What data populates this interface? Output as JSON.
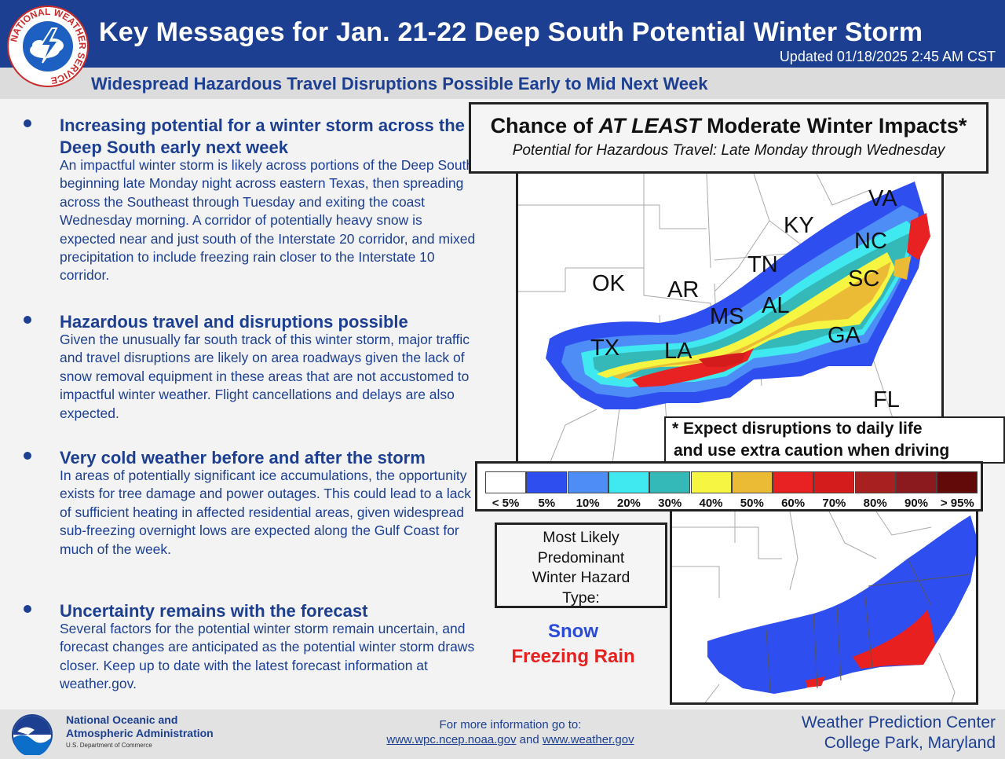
{
  "header": {
    "title": "Key Messages for Jan. 21-22 Deep South Potential Winter Storm",
    "updated": "Updated 01/18/2025 2:45 AM CST",
    "subtitle": "Widespread Hazardous Travel Disruptions Possible Early to Mid Next Week",
    "logo_text": "NATIONAL WEATHER SERVICE"
  },
  "messages": [
    {
      "heading": "Increasing potential for a winter storm across the Deep South early next week",
      "body": "An impactful winter storm is likely across portions of the Deep South beginning late Monday night across eastern Texas, then spreading across the Southeast through Tuesday and exiting the coast Wednesday morning.  A corridor of potentially heavy snow is expected near and just south of the Interstate 20 corridor, and mixed precipitation to include freezing rain closer to the Interstate 10 corridor."
    },
    {
      "heading": "Hazardous travel and disruptions possible",
      "body": "Given the unusually far south track of this winter storm, major traffic and travel disruptions are likely on area roadways given the lack of snow removal equipment in these areas that are not accustomed to impactful winter weather.  Flight cancellations and delays are also expected."
    },
    {
      "heading": "Very cold weather before and after the storm",
      "body": "In areas of potentially significant ice accumulations, the opportunity exists for tree damage and power outages. This could lead to a lack of sufficient heating in affected residential areas, given widespread sub-freezing overnight lows are expected along the Gulf Coast for much of the week."
    },
    {
      "heading": "Uncertainty remains with the forecast",
      "body": "Several factors for the potential winter storm remain uncertain, and forecast changes are anticipated as the potential winter storm draws closer. Keep up to date with the latest forecast information at weather.gov."
    }
  ],
  "impact_map": {
    "title_pre": "Chance of ",
    "title_em": "AT LEAST",
    "title_post": " Moderate Winter Impacts*",
    "subtitle": "Potential for Hazardous Travel: Late Monday through Wednesday",
    "states": [
      "VA",
      "KY",
      "NC",
      "TN",
      "SC",
      "OK",
      "AR",
      "AL",
      "MS",
      "GA",
      "TX",
      "LA",
      "FL"
    ],
    "note_line1": "* Expect disruptions to daily life",
    "note_line2": "and use extra caution when driving"
  },
  "legend": [
    {
      "label": "< 5%",
      "color": "#ffffff"
    },
    {
      "label": "5%",
      "color": "#2f4ef0"
    },
    {
      "label": "10%",
      "color": "#4d8df5"
    },
    {
      "label": "20%",
      "color": "#40e8f0"
    },
    {
      "label": "30%",
      "color": "#34b8b8"
    },
    {
      "label": "40%",
      "color": "#f5f542"
    },
    {
      "label": "50%",
      "color": "#ecbb36"
    },
    {
      "label": "60%",
      "color": "#e82222"
    },
    {
      "label": "70%",
      "color": "#d41c1c"
    },
    {
      "label": "80%",
      "color": "#a82020"
    },
    {
      "label": "90%",
      "color": "#8a1a1e"
    },
    {
      "label": "> 95%",
      "color": "#620a0a"
    }
  ],
  "hazard": {
    "line1": "Most Likely",
    "line2": "Predominant",
    "line3": "Winter Hazard",
    "line4": "Type:",
    "snow_label": "Snow",
    "fzra_label": "Freezing Rain",
    "snow_color": "#2f4ef0",
    "fzra_color": "#e82020"
  },
  "footer": {
    "noaa_line1": "National Oceanic and",
    "noaa_line2": "Atmospheric Administration",
    "noaa_line3": "U.S. Department of Commerce",
    "more_info": "For more information go to:",
    "link1": "www.wpc.ncep.noaa.gov",
    "link_and": " and ",
    "link2": "www.weather.gov",
    "wpc_line1": "Weather Prediction Center",
    "wpc_line2": "College Park, Maryland"
  }
}
